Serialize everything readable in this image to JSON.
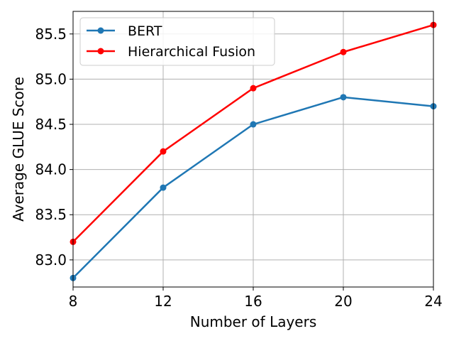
{
  "chart_data": {
    "type": "line",
    "title": "",
    "xlabel": "Number of Layers",
    "ylabel": "Average GLUE Score",
    "x": [
      8,
      12,
      16,
      20,
      24
    ],
    "xticks": [
      "8",
      "12",
      "16",
      "20",
      "24"
    ],
    "xlim": [
      8,
      24
    ],
    "yticks": [
      "83.0",
      "83.5",
      "84.0",
      "84.5",
      "85.0",
      "85.5"
    ],
    "ylim": [
      82.7,
      85.75
    ],
    "grid": true,
    "legend_position": "top-left",
    "series": [
      {
        "name": "BERT",
        "color": "#1f77b4",
        "values": [
          82.8,
          83.8,
          84.5,
          84.8,
          84.7
        ]
      },
      {
        "name": "Hierarchical Fusion",
        "color": "#ff0000",
        "values": [
          83.2,
          84.2,
          84.9,
          85.3,
          85.6
        ]
      }
    ]
  }
}
